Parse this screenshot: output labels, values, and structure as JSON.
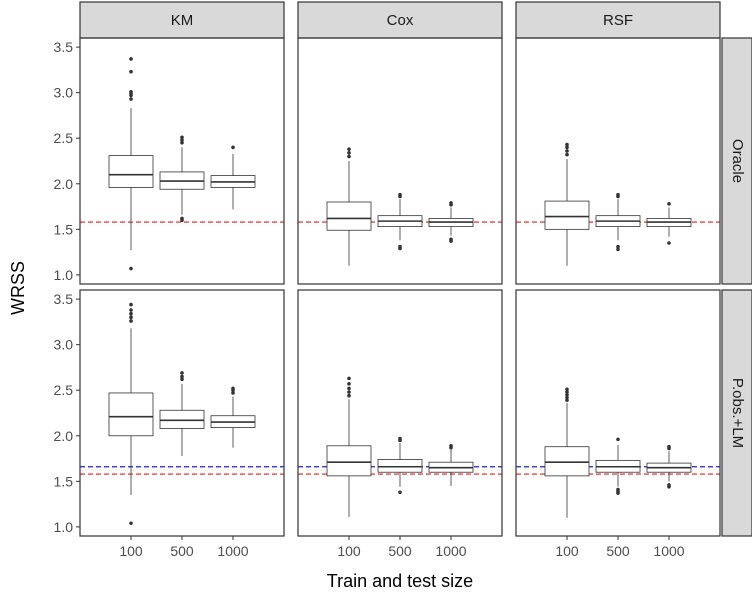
{
  "chart_data": {
    "type": "box",
    "xlabel": "Train and test size",
    "ylabel": "WRSS",
    "columns": [
      "KM",
      "Cox",
      "RSF"
    ],
    "rows": [
      "Oracle",
      "P.obs.+LM"
    ],
    "categories": [
      "100",
      "500",
      "1000"
    ],
    "ylim": [
      0.9,
      3.6
    ],
    "yticks": [
      1.0,
      1.5,
      2.0,
      2.5,
      3.0,
      3.5
    ],
    "ytick_labels": [
      "1.0",
      "1.5",
      "2.0",
      "2.5",
      "3.0",
      "3.5"
    ],
    "reference_lines": {
      "Oracle": [
        {
          "color": "#e41a1c",
          "y": 1.58
        }
      ],
      "P.obs.+LM": [
        {
          "color": "#e41a1c",
          "y": 1.58
        },
        {
          "color": "#1f1fd6",
          "y": 1.66
        }
      ]
    },
    "colors": {
      "red_line": "#e41a1c",
      "blue_line": "#1f1fd6",
      "strip_bg": "#d9d9d9"
    },
    "panels": [
      {
        "row": "Oracle",
        "col": "KM",
        "boxes": [
          {
            "x": "100",
            "min": 1.27,
            "q1": 1.96,
            "median": 2.1,
            "q3": 2.31,
            "max": 2.83,
            "outliers": [
              1.07,
              2.93,
              2.97,
              2.99,
              3.01,
              3.23,
              3.37
            ]
          },
          {
            "x": "500",
            "min": 1.66,
            "q1": 1.94,
            "median": 2.03,
            "q3": 2.13,
            "max": 2.4,
            "outliers": [
              1.6,
              1.62,
              2.45,
              2.48,
              2.51
            ]
          },
          {
            "x": "1000",
            "min": 1.72,
            "q1": 1.96,
            "median": 2.02,
            "q3": 2.09,
            "max": 2.33,
            "outliers": [
              2.4
            ]
          }
        ]
      },
      {
        "row": "Oracle",
        "col": "Cox",
        "boxes": [
          {
            "x": "100",
            "min": 1.1,
            "q1": 1.49,
            "median": 1.62,
            "q3": 1.8,
            "max": 2.25,
            "outliers": [
              2.3,
              2.34,
              2.38
            ]
          },
          {
            "x": "500",
            "min": 1.38,
            "q1": 1.53,
            "median": 1.59,
            "q3": 1.65,
            "max": 1.83,
            "outliers": [
              1.29,
              1.31,
              1.86,
              1.88
            ]
          },
          {
            "x": "1000",
            "min": 1.43,
            "q1": 1.53,
            "median": 1.58,
            "q3": 1.62,
            "max": 1.74,
            "outliers": [
              1.37,
              1.39,
              1.77,
              1.79
            ]
          }
        ]
      },
      {
        "row": "Oracle",
        "col": "RSF",
        "boxes": [
          {
            "x": "100",
            "min": 1.1,
            "q1": 1.5,
            "median": 1.64,
            "q3": 1.81,
            "max": 2.27,
            "outliers": [
              2.32,
              2.36,
              2.4,
              2.43
            ]
          },
          {
            "x": "500",
            "min": 1.38,
            "q1": 1.53,
            "median": 1.59,
            "q3": 1.65,
            "max": 1.83,
            "outliers": [
              1.28,
              1.31,
              1.86,
              1.88
            ]
          },
          {
            "x": "1000",
            "min": 1.42,
            "q1": 1.53,
            "median": 1.58,
            "q3": 1.62,
            "max": 1.74,
            "outliers": [
              1.35,
              1.78
            ]
          }
        ]
      },
      {
        "row": "P.obs.+LM",
        "col": "KM",
        "boxes": [
          {
            "x": "100",
            "min": 1.35,
            "q1": 2.0,
            "median": 2.21,
            "q3": 2.47,
            "max": 3.18,
            "outliers": [
              1.04,
              3.26,
              3.3,
              3.34,
              3.38,
              3.44
            ]
          },
          {
            "x": "500",
            "min": 1.78,
            "q1": 2.08,
            "median": 2.17,
            "q3": 2.28,
            "max": 2.57,
            "outliers": [
              2.62,
              2.65,
              2.69
            ]
          },
          {
            "x": "1000",
            "min": 1.87,
            "q1": 2.09,
            "median": 2.15,
            "q3": 2.22,
            "max": 2.43,
            "outliers": [
              2.47,
              2.5,
              2.52
            ]
          }
        ]
      },
      {
        "row": "P.obs.+LM",
        "col": "Cox",
        "boxes": [
          {
            "x": "100",
            "min": 1.11,
            "q1": 1.56,
            "median": 1.71,
            "q3": 1.89,
            "max": 2.4,
            "outliers": [
              2.44,
              2.48,
              2.52,
              2.57,
              2.63
            ]
          },
          {
            "x": "500",
            "min": 1.44,
            "q1": 1.6,
            "median": 1.66,
            "q3": 1.74,
            "max": 1.92,
            "outliers": [
              1.38,
              1.95,
              1.97
            ]
          },
          {
            "x": "1000",
            "min": 1.45,
            "q1": 1.6,
            "median": 1.65,
            "q3": 1.71,
            "max": 1.85,
            "outliers": [
              1.87,
              1.89
            ]
          }
        ]
      },
      {
        "row": "P.obs.+LM",
        "col": "RSF",
        "boxes": [
          {
            "x": "100",
            "min": 1.1,
            "q1": 1.56,
            "median": 1.71,
            "q3": 1.88,
            "max": 2.36,
            "outliers": [
              2.39,
              2.42,
              2.45,
              2.48,
              2.51
            ]
          },
          {
            "x": "500",
            "min": 1.44,
            "q1": 1.6,
            "median": 1.66,
            "q3": 1.73,
            "max": 1.9,
            "outliers": [
              1.37,
              1.39,
              1.41,
              1.96
            ]
          },
          {
            "x": "1000",
            "min": 1.5,
            "q1": 1.6,
            "median": 1.65,
            "q3": 1.7,
            "max": 1.83,
            "outliers": [
              1.44,
              1.46,
              1.86,
              1.88
            ]
          }
        ]
      }
    ]
  }
}
